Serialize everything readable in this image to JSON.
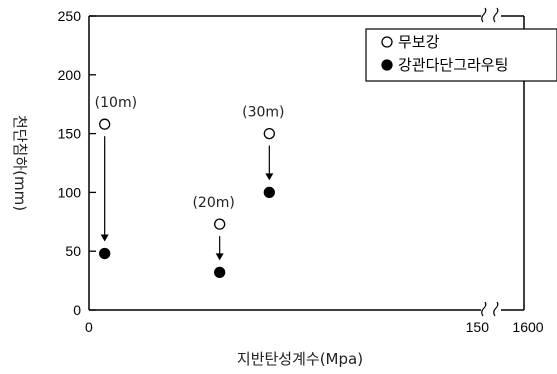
{
  "chart_data": {
    "type": "scatter",
    "xlabel": "지반탄성계수(Mpa)",
    "ylabel": "천단침하(mm)",
    "xlim": [
      0,
      150
    ],
    "ylim": [
      0,
      250
    ],
    "x_ticks": [
      "0",
      "150",
      "1600"
    ],
    "y_ticks": [
      "0",
      "50",
      "100",
      "150",
      "200",
      "250"
    ],
    "axis_break": "x between 150 and 1600",
    "grid": false,
    "legend_position": "top-right",
    "series": [
      {
        "name": "무보강",
        "marker": "open-circle",
        "color": "#000000",
        "points": [
          {
            "x": 6,
            "y": 158
          },
          {
            "x": 50,
            "y": 73
          },
          {
            "x": 69,
            "y": 150
          }
        ]
      },
      {
        "name": "강관다단그라우팅",
        "marker": "filled-circle",
        "color": "#000000",
        "points": [
          {
            "x": 6,
            "y": 48
          },
          {
            "x": 50,
            "y": 32
          },
          {
            "x": 69,
            "y": 100
          }
        ]
      }
    ],
    "annotations": [
      {
        "text": "(10m)",
        "x": 6,
        "y": 158
      },
      {
        "text": "(20m)",
        "x": 50,
        "y": 73
      },
      {
        "text": "(30m)",
        "x": 69,
        "y": 150
      }
    ]
  }
}
